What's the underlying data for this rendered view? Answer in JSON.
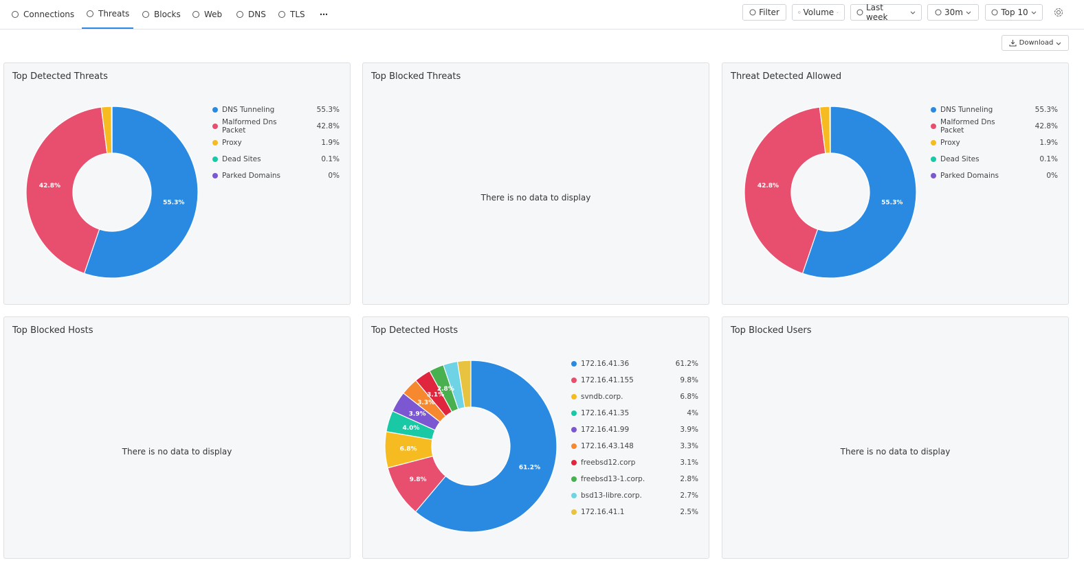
{
  "tabs": [
    "Connections",
    "Threats",
    "Blocks",
    "Web",
    "DNS",
    "TLS"
  ],
  "active_tab": 1,
  "toolbar": [
    "Filter",
    "Volume",
    "Last week",
    "30m",
    "Top 10"
  ],
  "download": "Download",
  "empty_text": "There is no data to display",
  "panels": [
    {
      "title": "Top Detected Threats",
      "chart": {
        "type": "pie",
        "categories": [
          "DNS Tunneling",
          "Malformed Dns Packet",
          "Proxy",
          "Dead Sites",
          "Parked Domains"
        ],
        "values": [
          55.3,
          42.8,
          1.9,
          0.1,
          0
        ],
        "value_labels": [
          "55.3%",
          "42.8%",
          "1.9%",
          "0.1%",
          "0%"
        ],
        "slice_labels": [
          "55.3%",
          "42.8%",
          null,
          null,
          null
        ],
        "colors": [
          "#2a8ae2",
          "#e84f6e",
          "#f7bb22",
          "#19c9a6",
          "#7b57d1"
        ]
      }
    },
    {
      "title": "Top Blocked Threats"
    },
    {
      "title": "Threat Detected Allowed",
      "chart": {
        "type": "pie",
        "categories": [
          "DNS Tunneling",
          "Malformed Dns Packet",
          "Proxy",
          "Dead Sites",
          "Parked Domains"
        ],
        "values": [
          55.3,
          42.8,
          1.9,
          0.1,
          0
        ],
        "value_labels": [
          "55.3%",
          "42.8%",
          "1.9%",
          "0.1%",
          "0%"
        ],
        "slice_labels": [
          "55.3%",
          "42.8%",
          null,
          null,
          null
        ],
        "colors": [
          "#2a8ae2",
          "#e84f6e",
          "#f7bb22",
          "#19c9a6",
          "#7b57d1"
        ]
      }
    },
    {
      "title": "Top Blocked Hosts"
    },
    {
      "title": "Top Detected Hosts",
      "chart": {
        "type": "pie",
        "categories": [
          "172.16.41.36",
          "172.16.41.155",
          "svndb.corp.",
          "172.16.41.35",
          "172.16.41.99",
          "172.16.43.148",
          "freebsd12.corp",
          "freebsd13-1.corp.",
          "bsd13-libre.corp.",
          "172.16.41.1"
        ],
        "values": [
          61.2,
          9.8,
          6.8,
          4,
          3.9,
          3.3,
          3.1,
          2.8,
          2.7,
          2.5
        ],
        "value_labels": [
          "61.2%",
          "9.8%",
          "6.8%",
          "4%",
          "3.9%",
          "3.3%",
          "3.1%",
          "2.8%",
          "2.7%",
          "2.5%"
        ],
        "slice_labels": [
          "61.2%",
          "9.8%",
          "6.8%",
          "4.0%",
          "3.9%",
          "3.3%",
          "3.1%",
          "2.8%",
          null,
          null
        ],
        "colors": [
          "#2a8ae2",
          "#e84f6e",
          "#f7bb22",
          "#19c9a6",
          "#7b57d1",
          "#f6892f",
          "#e0253f",
          "#48b04f",
          "#6fd3e6",
          "#e8c33f"
        ]
      }
    },
    {
      "title": "Top Blocked Users"
    }
  ]
}
